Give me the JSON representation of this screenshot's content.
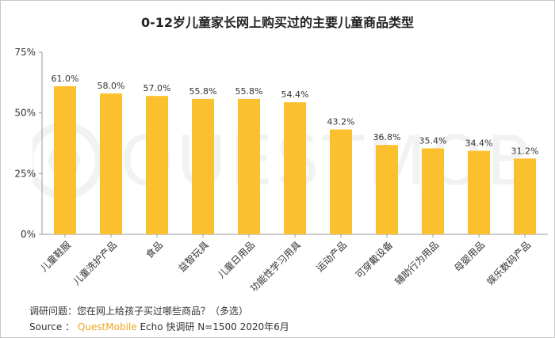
{
  "chart_data": {
    "type": "bar",
    "title": "0-12岁儿童家长网上购买过的主要儿童商品类型",
    "categories": [
      "儿童鞋服",
      "儿童洗护产品",
      "食品",
      "益智玩具",
      "儿童日用品",
      "功能性学习用具",
      "运动产品",
      "可穿戴设备",
      "辅助行为用品",
      "母婴用品",
      "娱乐数码产品"
    ],
    "values": [
      61.0,
      58.0,
      57.0,
      55.8,
      55.8,
      54.4,
      43.2,
      36.8,
      35.4,
      34.4,
      31.2
    ],
    "value_labels": [
      "61.0%",
      "58.0%",
      "57.0%",
      "55.8%",
      "55.8%",
      "54.4%",
      "43.2%",
      "36.8%",
      "35.4%",
      "34.4%",
      "31.2%"
    ],
    "y_ticks": [
      "0%",
      "25%",
      "50%",
      "75%"
    ],
    "y_tick_values": [
      0,
      25,
      50,
      75
    ],
    "ylim": [
      0,
      75
    ],
    "grid": false,
    "legend": "none",
    "bar_color": "#fbc02d"
  },
  "watermark": "QUESTMOBILE",
  "footnote": {
    "question": "调研问题：您在网上给孩子买过哪些商品？（多选）",
    "source_prefix": "Source ：",
    "source_brand": "QuestMobile",
    "source_rest": "Echo 快调研 N=1500 2020年6月"
  },
  "colors": {
    "bar": "#fbc02d",
    "brand_accent": "#f2a51e",
    "text": "#333333",
    "axis": "#999999"
  }
}
